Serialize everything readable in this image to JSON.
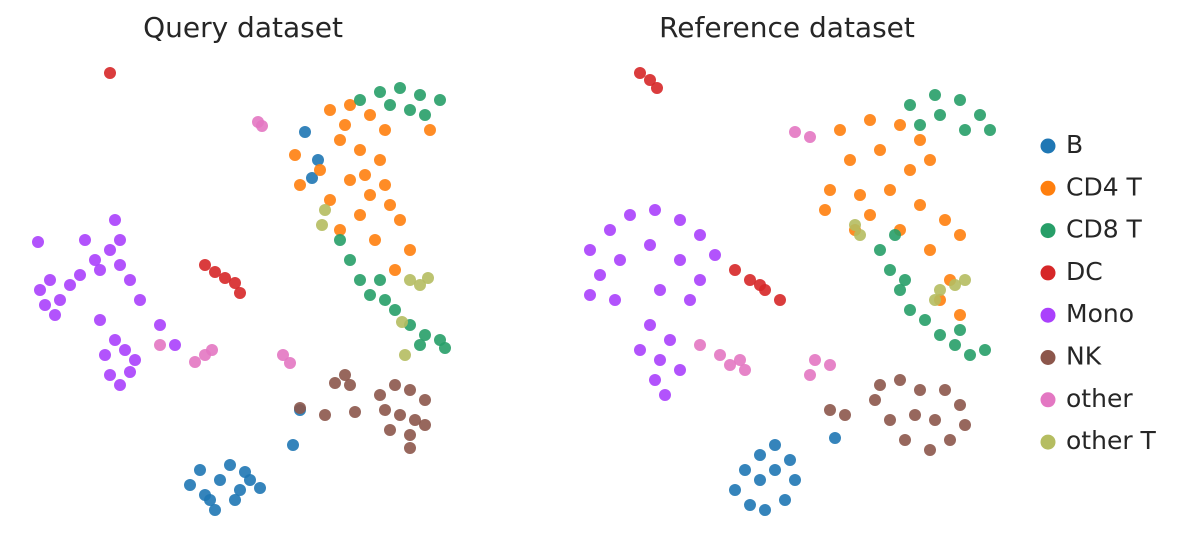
{
  "chart_data": [
    {
      "type": "scatter",
      "title": "Query dataset",
      "xlim": [
        0,
        430
      ],
      "ylim": [
        0,
        460
      ],
      "series": [
        {
          "name": "B",
          "color": "#1f77b4",
          "x": [
            160,
            170,
            180,
            190,
            200,
            210,
            220,
            230,
            185,
            175,
            205,
            215,
            270,
            263,
            275,
            288,
            282
          ],
          "y": [
            35,
            50,
            20,
            40,
            55,
            30,
            40,
            32,
            10,
            25,
            20,
            48,
            110,
            75,
            388,
            360,
            342
          ]
        },
        {
          "name": "CD4 T",
          "color": "#ff7f0e",
          "x": [
            300,
            320,
            340,
            355,
            310,
            330,
            350,
            290,
            320,
            340,
            360,
            330,
            370,
            270,
            265,
            310,
            345,
            380,
            365,
            400,
            315,
            335,
            355,
            300
          ],
          "y": [
            410,
            415,
            405,
            390,
            380,
            370,
            360,
            350,
            340,
            325,
            315,
            305,
            300,
            335,
            365,
            290,
            280,
            270,
            250,
            390,
            395,
            345,
            335,
            320
          ]
        },
        {
          "name": "CD8 T",
          "color": "#279e68",
          "x": [
            330,
            350,
            370,
            390,
            410,
            380,
            395,
            360,
            310,
            320,
            330,
            340,
            355,
            365,
            380,
            395,
            410,
            415,
            390,
            350
          ],
          "y": [
            420,
            428,
            432,
            425,
            420,
            410,
            405,
            415,
            280,
            260,
            240,
            225,
            220,
            210,
            195,
            185,
            180,
            172,
            175,
            240
          ]
        },
        {
          "name": "DC",
          "color": "#d62728",
          "x": [
            80,
            175,
            185,
            195,
            205,
            210
          ],
          "y": [
            447,
            255,
            248,
            242,
            237,
            227
          ]
        },
        {
          "name": "Mono",
          "color": "#aa40fc",
          "x": [
            10,
            20,
            30,
            15,
            25,
            40,
            50,
            65,
            80,
            90,
            70,
            85,
            55,
            100,
            110,
            85,
            95,
            75,
            105,
            80,
            90,
            100,
            130,
            145,
            70,
            8,
            90
          ],
          "y": [
            230,
            240,
            220,
            215,
            205,
            235,
            245,
            260,
            270,
            255,
            250,
            300,
            280,
            240,
            220,
            180,
            170,
            165,
            160,
            145,
            135,
            148,
            195,
            175,
            200,
            278,
            280
          ]
        },
        {
          "name": "NK",
          "color": "#8c564b",
          "x": [
            350,
            365,
            380,
            395,
            355,
            370,
            385,
            360,
            380,
            395,
            315,
            320,
            305,
            325,
            295,
            270,
            380
          ],
          "y": [
            125,
            135,
            130,
            120,
            110,
            105,
            100,
            90,
            85,
            95,
            145,
            135,
            137,
            108,
            105,
            112,
            72
          ]
        },
        {
          "name": "other",
          "color": "#e377c2",
          "x": [
            228,
            232,
            165,
            175,
            182,
            253,
            260,
            130
          ],
          "y": [
            398,
            394,
            158,
            165,
            170,
            165,
            157,
            175
          ]
        },
        {
          "name": "other T",
          "color": "#b5bd61",
          "x": [
            380,
            390,
            398,
            295,
            292,
            372,
            375
          ],
          "y": [
            240,
            235,
            242,
            310,
            295,
            198,
            165
          ]
        }
      ]
    },
    {
      "type": "scatter",
      "title": "Reference dataset",
      "xlim": [
        0,
        430
      ],
      "ylim": [
        0,
        460
      ],
      "legend": "right",
      "series": [
        {
          "name": "B",
          "color": "#1f77b4",
          "x": [
            165,
            175,
            190,
            205,
            220,
            225,
            215,
            195,
            180,
            190,
            205,
            265
          ],
          "y": [
            30,
            50,
            65,
            75,
            60,
            40,
            20,
            10,
            15,
            40,
            50,
            82
          ]
        },
        {
          "name": "CD4 T",
          "color": "#ff7f0e",
          "x": [
            270,
            300,
            330,
            350,
            360,
            280,
            310,
            340,
            260,
            290,
            320,
            350,
            375,
            390,
            330,
            300,
            360,
            380,
            390,
            370,
            255,
            285
          ],
          "y": [
            390,
            400,
            395,
            380,
            360,
            360,
            370,
            350,
            330,
            325,
            330,
            315,
            300,
            285,
            290,
            305,
            270,
            240,
            205,
            220,
            310,
            290
          ]
        },
        {
          "name": "CD8 T",
          "color": "#279e68",
          "x": [
            340,
            365,
            390,
            410,
            420,
            395,
            370,
            350,
            310,
            320,
            330,
            340,
            355,
            370,
            385,
            400,
            415,
            390,
            335,
            325
          ],
          "y": [
            415,
            425,
            420,
            405,
            390,
            390,
            405,
            395,
            270,
            250,
            230,
            210,
            200,
            185,
            175,
            165,
            170,
            190,
            240,
            285
          ]
        },
        {
          "name": "DC",
          "color": "#d62728",
          "x": [
            70,
            80,
            87,
            165,
            180,
            195,
            210,
            190
          ],
          "y": [
            447,
            440,
            432,
            250,
            240,
            230,
            220,
            235
          ]
        },
        {
          "name": "Mono",
          "color": "#aa40fc",
          "x": [
            20,
            40,
            60,
            85,
            110,
            130,
            145,
            30,
            50,
            80,
            110,
            130,
            20,
            45,
            90,
            120,
            80,
            100,
            90,
            85,
            95,
            110,
            70
          ],
          "y": [
            270,
            290,
            305,
            310,
            300,
            285,
            265,
            245,
            260,
            275,
            260,
            240,
            225,
            220,
            230,
            220,
            195,
            180,
            160,
            140,
            125,
            150,
            170
          ]
        },
        {
          "name": "NK",
          "color": "#8c564b",
          "x": [
            310,
            330,
            350,
            375,
            390,
            395,
            380,
            360,
            335,
            320,
            345,
            365,
            305,
            275,
            260
          ],
          "y": [
            135,
            140,
            130,
            130,
            115,
            95,
            80,
            70,
            80,
            100,
            105,
            100,
            120,
            105,
            110
          ]
        },
        {
          "name": "other",
          "color": "#e377c2",
          "x": [
            225,
            240,
            245,
            260,
            240,
            130,
            150,
            170,
            175,
            160
          ],
          "y": [
            388,
            383,
            160,
            155,
            145,
            175,
            165,
            160,
            150,
            155
          ]
        },
        {
          "name": "other T",
          "color": "#b5bd61",
          "x": [
            370,
            385,
            395,
            365,
            290,
            285
          ],
          "y": [
            230,
            235,
            240,
            220,
            285,
            295
          ]
        }
      ]
    }
  ]
}
